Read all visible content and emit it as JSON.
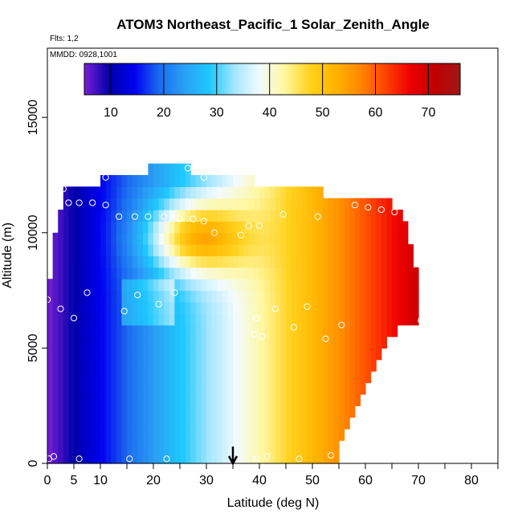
{
  "chart_data": {
    "type": "heatmap",
    "title": "ATOM3 Northeast_Pacific_1 Solar_Zenith_Angle",
    "subtitle_flights": "Flts: 1,2",
    "subtitle_dates": "MMDD: 0928,1001",
    "xlabel": "Latitude (deg N)",
    "ylabel": "Altitude (m)",
    "xlim": [
      0,
      85
    ],
    "ylim": [
      0,
      18000
    ],
    "x_ticks": [
      0,
      5,
      10,
      20,
      30,
      40,
      50,
      60,
      70,
      80
    ],
    "x_tick_labels": [
      "0",
      "5",
      "10",
      "20",
      "30",
      "40",
      "50",
      "60",
      "70",
      "80"
    ],
    "y_ticks": [
      0,
      5000,
      10000,
      15000
    ],
    "y_tick_labels": [
      "0",
      "5000",
      "10000",
      "15000"
    ],
    "colorbar": {
      "range": [
        5,
        76
      ],
      "ticks": [
        10,
        20,
        30,
        40,
        50,
        60,
        70
      ],
      "tick_labels": [
        "10",
        "20",
        "30",
        "40",
        "50",
        "60",
        "70"
      ],
      "palette": [
        "#7a1fd6",
        "#0000a8",
        "#0000f0",
        "#1c6cf0",
        "#2aa0f5",
        "#1ec8ff",
        "#a6e6ff",
        "#f2fbff",
        "#fff7a0",
        "#ffd21e",
        "#ffb400",
        "#ff8800",
        "#ff4400",
        "#ee0000",
        "#c00000",
        "#a01818"
      ]
    },
    "arrow_latitude": 35,
    "rows": [
      {
        "alt": 0,
        "x0": 0,
        "x1": 55
      },
      {
        "alt": 500,
        "x0": 0,
        "x1": 55
      },
      {
        "alt": 1000,
        "x0": 0,
        "x1": 56
      },
      {
        "alt": 1500,
        "x0": 0,
        "x1": 57
      },
      {
        "alt": 2000,
        "x0": 0,
        "x1": 58
      },
      {
        "alt": 2500,
        "x0": 0,
        "x1": 59
      },
      {
        "alt": 3000,
        "x0": 0,
        "x1": 60
      },
      {
        "alt": 3500,
        "x0": 0,
        "x1": 61
      },
      {
        "alt": 4000,
        "x0": 0,
        "x1": 62
      },
      {
        "alt": 4500,
        "x0": 0,
        "x1": 63
      },
      {
        "alt": 5000,
        "x0": 0,
        "x1": 64
      },
      {
        "alt": 5500,
        "x0": 0,
        "x1": 66
      },
      {
        "alt": 6000,
        "x0": 0,
        "x1": 70
      },
      {
        "alt": 6500,
        "x0": 0,
        "x1": 70
      },
      {
        "alt": 7000,
        "x0": 0,
        "x1": 70
      },
      {
        "alt": 7500,
        "x0": 0,
        "x1": 70
      },
      {
        "alt": 8000,
        "x0": 1,
        "x1": 70
      },
      {
        "alt": 8500,
        "x0": 1,
        "x1": 69
      },
      {
        "alt": 9000,
        "x0": 1,
        "x1": 69
      },
      {
        "alt": 9500,
        "x0": 1,
        "x1": 68
      },
      {
        "alt": 10000,
        "x0": 2,
        "x1": 68
      },
      {
        "alt": 10500,
        "x0": 2,
        "x1": 67
      },
      {
        "alt": 11000,
        "x0": 3,
        "x1": 65
      },
      {
        "alt": 11500,
        "x0": 3,
        "x1": 52
      },
      {
        "alt": 12000,
        "x0": 10,
        "x1": 39
      },
      {
        "alt": 12500,
        "x0": 19,
        "x1": 27
      }
    ],
    "points": [
      {
        "lat": 0.3,
        "alt": 200
      },
      {
        "lat": 1.2,
        "alt": 300
      },
      {
        "lat": 6.0,
        "alt": 200
      },
      {
        "lat": 15.5,
        "alt": 200
      },
      {
        "lat": 22.5,
        "alt": 200
      },
      {
        "lat": 39.5,
        "alt": 200
      },
      {
        "lat": 41.5,
        "alt": 300
      },
      {
        "lat": 47.5,
        "alt": 200
      },
      {
        "lat": 53.5,
        "alt": 350
      },
      {
        "lat": 5.0,
        "alt": 6300
      },
      {
        "lat": 2.5,
        "alt": 6700
      },
      {
        "lat": 0.0,
        "alt": 7100
      },
      {
        "lat": 7.5,
        "alt": 7400
      },
      {
        "lat": 14.5,
        "alt": 6600
      },
      {
        "lat": 17.0,
        "alt": 7300
      },
      {
        "lat": 24.0,
        "alt": 7400
      },
      {
        "lat": 21.0,
        "alt": 6900
      },
      {
        "lat": 39.0,
        "alt": 5600
      },
      {
        "lat": 40.5,
        "alt": 5500
      },
      {
        "lat": 39.5,
        "alt": 6300
      },
      {
        "lat": 43.0,
        "alt": 6700
      },
      {
        "lat": 46.5,
        "alt": 5900
      },
      {
        "lat": 49.0,
        "alt": 6800
      },
      {
        "lat": 52.5,
        "alt": 5400
      },
      {
        "lat": 55.5,
        "alt": 6000
      },
      {
        "lat": 70.5,
        "alt": 6200
      },
      {
        "lat": 3.0,
        "alt": 11900
      },
      {
        "lat": 4.0,
        "alt": 11300
      },
      {
        "lat": 6.0,
        "alt": 11300
      },
      {
        "lat": 8.5,
        "alt": 11300
      },
      {
        "lat": 11.0,
        "alt": 11200
      },
      {
        "lat": 11.0,
        "alt": 12400
      },
      {
        "lat": 13.5,
        "alt": 10700
      },
      {
        "lat": 16.5,
        "alt": 10700
      },
      {
        "lat": 19.0,
        "alt": 10700
      },
      {
        "lat": 22.0,
        "alt": 10700
      },
      {
        "lat": 25.0,
        "alt": 10600
      },
      {
        "lat": 27.5,
        "alt": 10600
      },
      {
        "lat": 29.5,
        "alt": 10500
      },
      {
        "lat": 31.5,
        "alt": 10000
      },
      {
        "lat": 36.5,
        "alt": 9900
      },
      {
        "lat": 38.0,
        "alt": 10300
      },
      {
        "lat": 40.0,
        "alt": 10300
      },
      {
        "lat": 44.5,
        "alt": 10800
      },
      {
        "lat": 51.0,
        "alt": 10700
      },
      {
        "lat": 58.0,
        "alt": 11200
      },
      {
        "lat": 60.5,
        "alt": 11100
      },
      {
        "lat": 63.0,
        "alt": 11000
      },
      {
        "lat": 65.5,
        "alt": 10900
      },
      {
        "lat": 68.5,
        "alt": 10900
      },
      {
        "lat": 26.5,
        "alt": 12800
      },
      {
        "lat": 29.5,
        "alt": 12400
      }
    ]
  }
}
